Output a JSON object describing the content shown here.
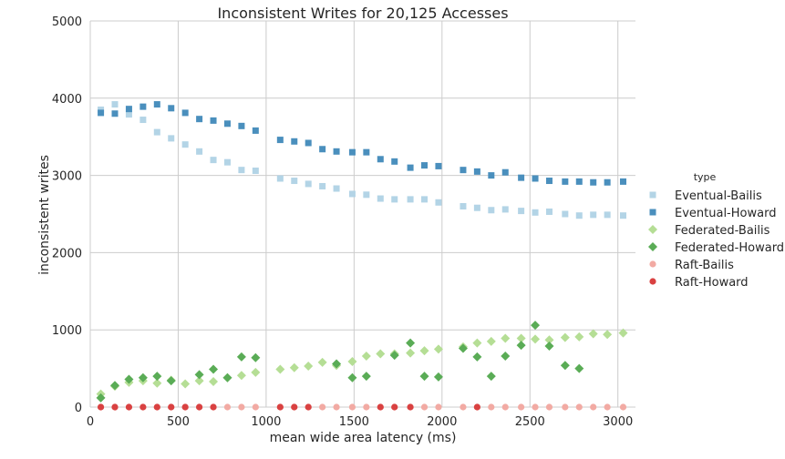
{
  "chart_data": {
    "type": "scatter",
    "title": "Inconsistent Writes for 20,125 Accesses",
    "xlabel": "mean wide area latency (ms)",
    "ylabel": "inconsistent writes",
    "xlim": [
      0,
      3100
    ],
    "ylim": [
      0,
      5000
    ],
    "xticks": [
      0,
      500,
      1000,
      1500,
      2000,
      2500,
      3000
    ],
    "yticks": [
      0,
      1000,
      2000,
      3000,
      4000,
      5000
    ],
    "grid": true,
    "legend": {
      "title": "type",
      "placement": "right"
    },
    "series": [
      {
        "name": "Eventual-Bailis",
        "marker": "square",
        "color": "#b3d4e6",
        "x": [
          60,
          140,
          220,
          300,
          380,
          460,
          540,
          620,
          700,
          780,
          860,
          940,
          1080,
          1160,
          1240,
          1320,
          1400,
          1490,
          1570,
          1650,
          1730,
          1820,
          1900,
          1980,
          2120,
          2200,
          2280,
          2360,
          2450,
          2530,
          2610,
          2700,
          2780,
          2860,
          2940,
          3030
        ],
        "y": [
          3850,
          3920,
          3790,
          3720,
          3560,
          3480,
          3400,
          3310,
          3200,
          3170,
          3070,
          3060,
          2960,
          2930,
          2890,
          2860,
          2830,
          2760,
          2750,
          2700,
          2690,
          2690,
          2690,
          2650,
          2600,
          2580,
          2550,
          2560,
          2540,
          2520,
          2530,
          2500,
          2480,
          2490,
          2490,
          2480
        ]
      },
      {
        "name": "Eventual-Howard",
        "marker": "square",
        "color": "#4a8fbd",
        "x": [
          60,
          140,
          220,
          300,
          380,
          460,
          540,
          620,
          700,
          780,
          860,
          940,
          1080,
          1160,
          1240,
          1320,
          1400,
          1490,
          1570,
          1650,
          1730,
          1820,
          1900,
          1980,
          2120,
          2200,
          2280,
          2360,
          2450,
          2530,
          2610,
          2700,
          2780,
          2860,
          2940,
          3030
        ],
        "y": [
          3810,
          3800,
          3860,
          3890,
          3920,
          3870,
          3810,
          3730,
          3710,
          3670,
          3640,
          3580,
          3460,
          3440,
          3420,
          3340,
          3310,
          3300,
          3300,
          3210,
          3180,
          3100,
          3130,
          3120,
          3070,
          3050,
          3000,
          3040,
          2970,
          2960,
          2930,
          2920,
          2920,
          2910,
          2910,
          2920
        ]
      },
      {
        "name": "Federated-Bailis",
        "marker": "diamond",
        "color": "#b5de95",
        "x": [
          60,
          140,
          220,
          300,
          380,
          460,
          540,
          620,
          700,
          780,
          860,
          940,
          1080,
          1160,
          1240,
          1320,
          1400,
          1490,
          1570,
          1650,
          1730,
          1820,
          1900,
          1980,
          2120,
          2200,
          2280,
          2360,
          2450,
          2530,
          2610,
          2700,
          2780,
          2860,
          2940,
          3030
        ],
        "y": [
          170,
          270,
          320,
          340,
          310,
          350,
          300,
          340,
          330,
          380,
          410,
          450,
          490,
          510,
          530,
          580,
          540,
          590,
          660,
          690,
          690,
          700,
          730,
          750,
          780,
          830,
          850,
          890,
          890,
          880,
          870,
          900,
          910,
          950,
          940,
          960
        ]
      },
      {
        "name": "Federated-Howard",
        "marker": "diamond",
        "color": "#5aac56",
        "x": [
          60,
          140,
          220,
          300,
          380,
          460,
          620,
          700,
          780,
          860,
          940,
          1400,
          1490,
          1570,
          1730,
          1820,
          1900,
          1980,
          2120,
          2200,
          2280,
          2360,
          2450,
          2530,
          2610,
          2700,
          2780
        ],
        "y": [
          120,
          280,
          360,
          380,
          400,
          340,
          420,
          490,
          380,
          650,
          640,
          560,
          380,
          400,
          670,
          830,
          400,
          390,
          760,
          650,
          400,
          660,
          800,
          1060,
          790,
          540,
          500
        ]
      },
      {
        "name": "Raft-Bailis",
        "marker": "circle",
        "color": "#f2aaa3",
        "x": [
          60,
          140,
          220,
          300,
          380,
          460,
          540,
          620,
          700,
          780,
          860,
          940,
          1080,
          1160,
          1240,
          1320,
          1400,
          1490,
          1570,
          1650,
          1730,
          1820,
          1900,
          1980,
          2120,
          2200,
          2280,
          2360,
          2450,
          2530,
          2610,
          2700,
          2780,
          2860,
          2940,
          3030
        ],
        "y": [
          0,
          0,
          0,
          0,
          0,
          0,
          0,
          0,
          0,
          0,
          0,
          0,
          0,
          0,
          0,
          0,
          0,
          0,
          0,
          0,
          0,
          0,
          0,
          0,
          0,
          0,
          0,
          0,
          0,
          0,
          0,
          0,
          0,
          0,
          0,
          0
        ]
      },
      {
        "name": "Raft-Howard",
        "marker": "circle",
        "color": "#d94141",
        "x": [
          60,
          140,
          220,
          300,
          380,
          460,
          540,
          620,
          700,
          1080,
          1160,
          1240,
          1650,
          1730,
          1820,
          2200
        ],
        "y": [
          0,
          0,
          0,
          0,
          0,
          0,
          0,
          0,
          0,
          0,
          0,
          0,
          0,
          0,
          0,
          0
        ]
      }
    ]
  }
}
